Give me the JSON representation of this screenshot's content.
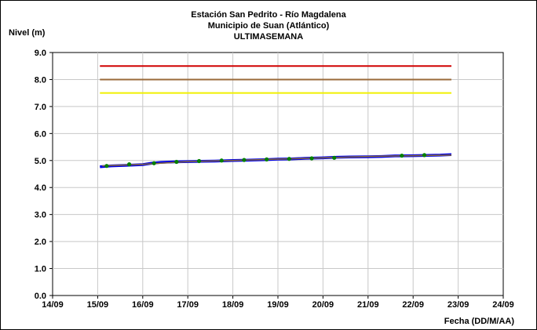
{
  "chart_data": {
    "type": "line",
    "title": "Estación San Pedrito - Río Magdalena",
    "subtitle": "Municipio de Suan (Atlántico)",
    "subtitle2": "ULTIMASEMANA",
    "xlabel": "Fecha (DD/M/AA)",
    "ylabel": "Nivel (m)",
    "ylim": [
      0,
      9
    ],
    "xlim": [
      0,
      10
    ],
    "y_ticks": [
      "0.0",
      "1.0",
      "2.0",
      "3.0",
      "4.0",
      "5.0",
      "6.0",
      "7.0",
      "8.0",
      "9.0"
    ],
    "x_ticks": [
      "14/09",
      "15/09",
      "16/09",
      "17/09",
      "18/09",
      "19/09",
      "20/09",
      "21/09",
      "22/09",
      "23/09",
      "24/09"
    ],
    "grid": true,
    "thresholds": [
      {
        "value": 8.5,
        "color": "#d00000"
      },
      {
        "value": 8.0,
        "color": "#9a6a3a"
      },
      {
        "value": 7.5,
        "color": "#f0f000"
      }
    ],
    "series": [
      {
        "color": "#0000e6",
        "x": [
          1.05,
          1.3,
          1.6,
          2.0,
          2.2,
          2.4,
          2.7,
          3.0,
          3.3,
          3.6,
          4.0,
          4.3,
          4.7,
          5.0,
          5.3,
          5.6,
          6.0,
          6.3,
          6.6,
          7.0,
          7.3,
          7.6,
          8.0,
          8.3,
          8.6,
          8.85
        ],
        "y": [
          4.77,
          4.8,
          4.82,
          4.85,
          4.9,
          4.93,
          4.95,
          4.96,
          4.97,
          4.98,
          5.0,
          5.01,
          5.03,
          5.05,
          5.06,
          5.08,
          5.1,
          5.12,
          5.13,
          5.14,
          5.15,
          5.17,
          5.18,
          5.19,
          5.2,
          5.22
        ]
      },
      {
        "color": "#8a6a3a",
        "x": [
          1.1,
          2.0,
          3.0,
          4.0,
          5.0,
          6.0,
          7.0,
          8.0,
          8.85
        ],
        "y": [
          4.8,
          4.86,
          4.96,
          5.0,
          5.05,
          5.1,
          5.15,
          5.18,
          5.2
        ]
      },
      {
        "color": "#008000",
        "markers_only": true,
        "x": [
          1.2,
          1.7,
          2.25,
          2.75,
          3.25,
          3.75,
          4.25,
          4.75,
          5.25,
          5.75,
          6.25,
          7.75,
          8.25
        ],
        "y": [
          4.8,
          4.86,
          4.9,
          4.95,
          4.98,
          5.0,
          5.02,
          5.04,
          5.06,
          5.08,
          5.1,
          5.18,
          5.2
        ]
      }
    ]
  }
}
